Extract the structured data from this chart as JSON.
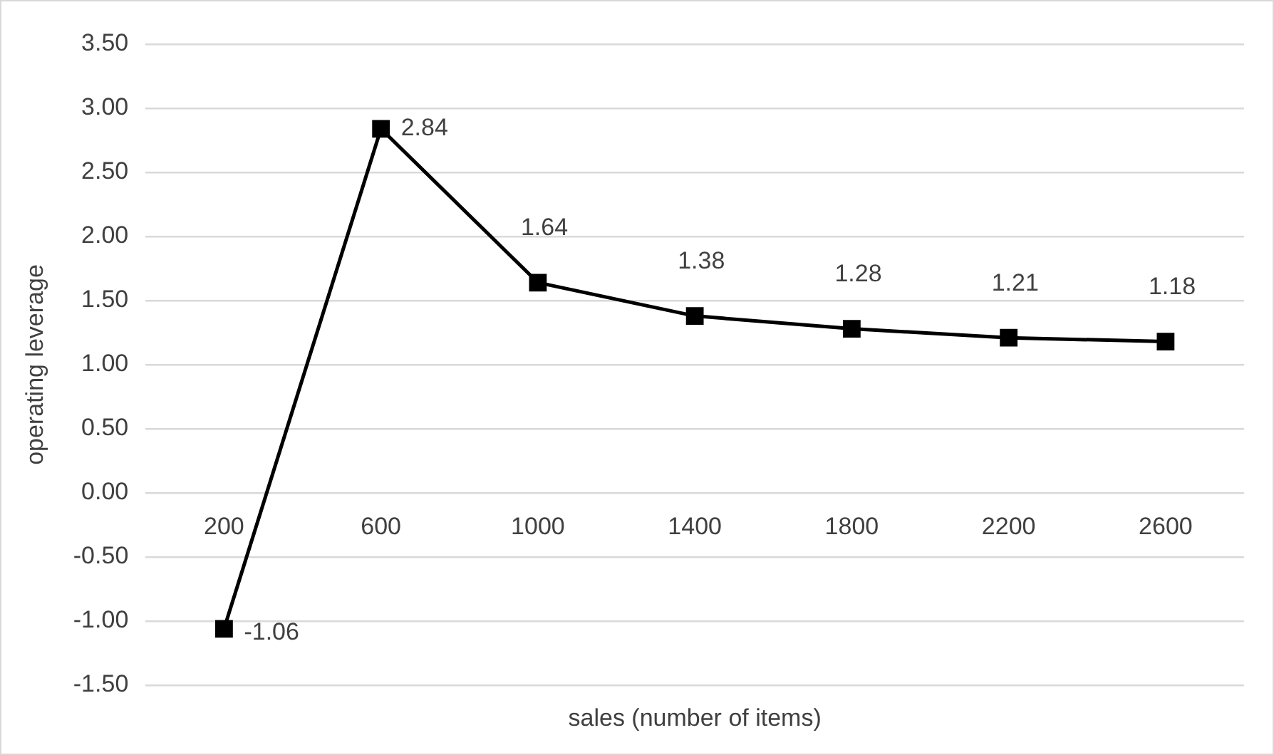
{
  "chart_data": {
    "type": "line",
    "xlabel": "sales (number of items)",
    "ylabel": "operating leverage",
    "categories": [
      "200",
      "600",
      "1000",
      "1400",
      "1800",
      "2200",
      "2600"
    ],
    "series": [
      {
        "color": "#000000",
        "values": [
          -1.06,
          2.84,
          1.64,
          1.38,
          1.28,
          1.21,
          1.18
        ]
      }
    ],
    "ylim": [
      -1.5,
      3.5
    ],
    "yticks": [
      {
        "value": -1.5,
        "label": "-1.50"
      },
      {
        "value": -1,
        "label": "-1.00"
      },
      {
        "value": -0.5,
        "label": "-0.50"
      },
      {
        "value": 0,
        "label": "0.00"
      },
      {
        "value": 0.5,
        "label": "0.50"
      },
      {
        "value": 1,
        "label": "1.00"
      },
      {
        "value": 1.5,
        "label": "1.50"
      },
      {
        "value": 2,
        "label": "2.00"
      },
      {
        "value": 2.5,
        "label": "2.50"
      },
      {
        "value": 3,
        "label": "3.00"
      },
      {
        "value": 3.5,
        "label": "3.50"
      }
    ],
    "grid": "y",
    "legend": false,
    "marker": "square",
    "line_style": "solid",
    "data_labels": true
  }
}
